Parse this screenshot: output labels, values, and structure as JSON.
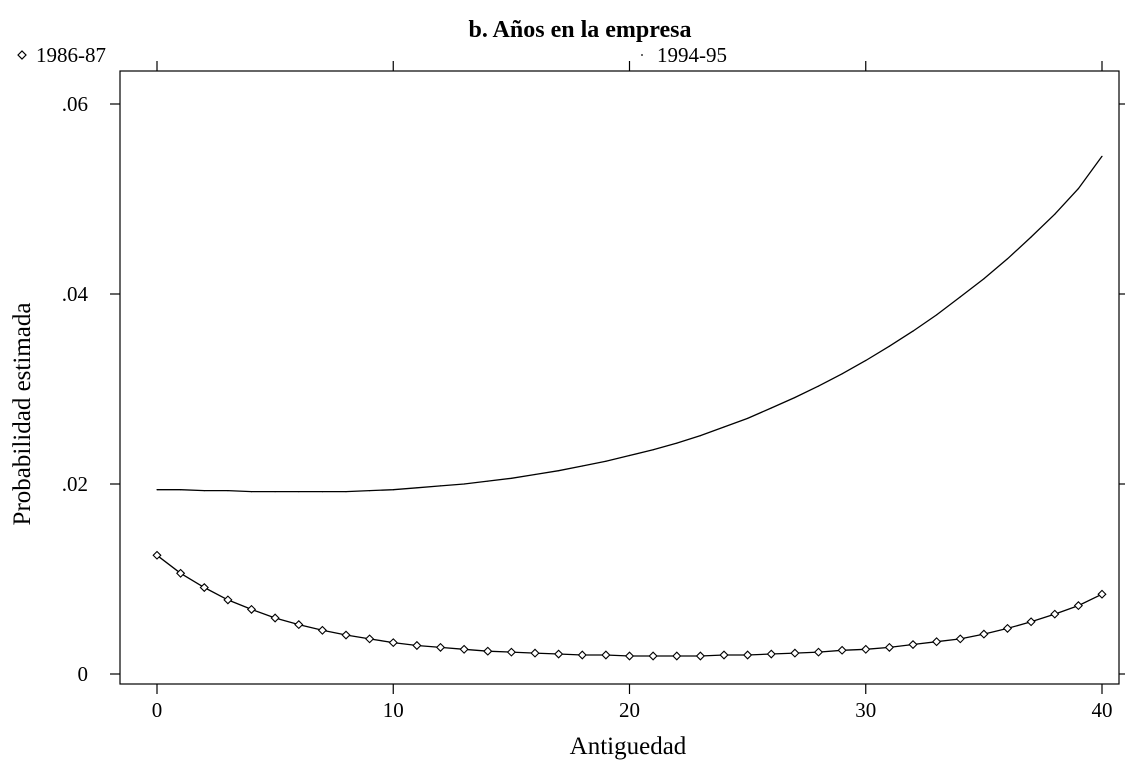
{
  "chart_data": {
    "type": "line",
    "title": "b. Años en la empresa",
    "xlabel": "Antiguedad",
    "ylabel": "Probabilidad estimada",
    "xlim": [
      0,
      40
    ],
    "ylim": [
      0,
      0.06
    ],
    "xticks": [
      0,
      10,
      20,
      30,
      40
    ],
    "xtick_labels": [
      "0",
      "10",
      "20",
      "30",
      "40"
    ],
    "yticks": [
      0,
      0.02,
      0.04,
      0.06
    ],
    "ytick_labels": [
      "0",
      ".02",
      ".04",
      ".06"
    ],
    "legend_position": "top",
    "grid": false,
    "x": [
      0,
      1,
      2,
      3,
      4,
      5,
      6,
      7,
      8,
      9,
      10,
      11,
      12,
      13,
      14,
      15,
      16,
      17,
      18,
      19,
      20,
      21,
      22,
      23,
      24,
      25,
      26,
      27,
      28,
      29,
      30,
      31,
      32,
      33,
      34,
      35,
      36,
      37,
      38,
      39,
      40
    ],
    "series": [
      {
        "name": "1986-87",
        "marker": "diamond",
        "values": [
          0.0125,
          0.0106,
          0.0091,
          0.0078,
          0.0068,
          0.0059,
          0.0052,
          0.0046,
          0.0041,
          0.0037,
          0.0033,
          0.003,
          0.0028,
          0.0026,
          0.0024,
          0.0023,
          0.0022,
          0.0021,
          0.002,
          0.002,
          0.0019,
          0.0019,
          0.0019,
          0.0019,
          0.002,
          0.002,
          0.0021,
          0.0022,
          0.0023,
          0.0025,
          0.0026,
          0.0028,
          0.0031,
          0.0034,
          0.0037,
          0.0042,
          0.0048,
          0.0055,
          0.0063,
          0.0072,
          0.0084
        ]
      },
      {
        "name": "1994-95",
        "marker": "dot",
        "values": [
          0.0194,
          0.0194,
          0.0193,
          0.0193,
          0.0192,
          0.0192,
          0.0192,
          0.0192,
          0.0192,
          0.0193,
          0.0194,
          0.0196,
          0.0198,
          0.02,
          0.0203,
          0.0206,
          0.021,
          0.0214,
          0.0219,
          0.0224,
          0.023,
          0.0236,
          0.0243,
          0.0251,
          0.026,
          0.0269,
          0.028,
          0.0291,
          0.0303,
          0.0316,
          0.033,
          0.0345,
          0.0361,
          0.0378,
          0.0397,
          0.0416,
          0.0437,
          0.046,
          0.0484,
          0.0511,
          0.0545
        ]
      }
    ]
  }
}
